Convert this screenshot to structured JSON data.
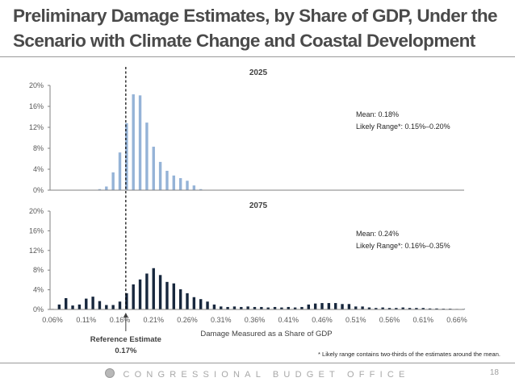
{
  "slide": {
    "title": "Preliminary Damage Estimates, by Share of GDP, Under the Scenario with Climate Change and Coastal Development",
    "footer_org": "CONGRESSIONAL BUDGET OFFICE",
    "page_number": "18",
    "footnote": "* Likely range contains two-thirds of the estimates around the mean."
  },
  "colors": {
    "bars_2025": "#95b3d7",
    "bars_2075": "#17273d",
    "axis": "#808080",
    "reference_line": "#000000"
  },
  "reference": {
    "label": "Reference Estimate",
    "value_label": "0.17%",
    "value": 0.17
  },
  "chart_data": [
    {
      "type": "bar",
      "title": "2025",
      "xlabel": "",
      "ylabel": "",
      "ylim": [
        0,
        20
      ],
      "yticks": [
        "0%",
        "4%",
        "8%",
        "12%",
        "16%",
        "20%"
      ],
      "ytick_values": [
        0,
        4,
        8,
        12,
        16,
        20
      ],
      "x_start": 0.13,
      "x_step": 0.01,
      "values": [
        0.2,
        0.7,
        3.4,
        7.2,
        12.8,
        18.3,
        18.1,
        12.9,
        8.3,
        5.4,
        3.7,
        2.8,
        2.3,
        1.8,
        0.9,
        0.2
      ],
      "annotations": [
        "Mean: 0.18%",
        "Likely Range*: 0.15%–0.20%"
      ],
      "grid": false
    },
    {
      "type": "bar",
      "title": "2075",
      "xlabel": "Damage Measured as a Share of GDP",
      "ylabel": "",
      "ylim": [
        0,
        20
      ],
      "xlim": [
        0.06,
        0.69
      ],
      "yticks": [
        "0%",
        "4%",
        "8%",
        "12%",
        "16%",
        "20%"
      ],
      "ytick_values": [
        0,
        4,
        8,
        12,
        16,
        20
      ],
      "xticks": [
        "0.06%",
        "0.11%",
        "0.16%",
        "0.21%",
        "0.26%",
        "0.31%",
        "0.36%",
        "0.41%",
        "0.46%",
        "0.51%",
        "0.56%",
        "0.61%",
        "0.66%"
      ],
      "xtick_values": [
        0.06,
        0.11,
        0.16,
        0.21,
        0.26,
        0.31,
        0.36,
        0.41,
        0.46,
        0.51,
        0.56,
        0.61,
        0.66
      ],
      "x_start": 0.06,
      "x_step": 0.01,
      "values": [
        0.1,
        1.0,
        2.3,
        0.8,
        1.0,
        2.2,
        2.6,
        1.7,
        0.9,
        0.9,
        1.6,
        3.3,
        5.1,
        6.1,
        7.3,
        8.4,
        7.0,
        5.6,
        5.3,
        4.1,
        3.3,
        2.5,
        2.1,
        1.6,
        1.0,
        0.6,
        0.5,
        0.6,
        0.5,
        0.6,
        0.5,
        0.5,
        0.4,
        0.5,
        0.4,
        0.5,
        0.4,
        0.5,
        1.0,
        1.2,
        1.3,
        1.3,
        1.3,
        1.1,
        1.1,
        0.6,
        0.6,
        0.4,
        0.3,
        0.4,
        0.3,
        0.3,
        0.4,
        0.3,
        0.3,
        0.3,
        0.2,
        0.2,
        0.15,
        0.15,
        0.1,
        0.1
      ],
      "annotations": [
        "Mean: 0.24%",
        "Likely Range*: 0.16%–0.35%"
      ],
      "grid": false
    }
  ]
}
